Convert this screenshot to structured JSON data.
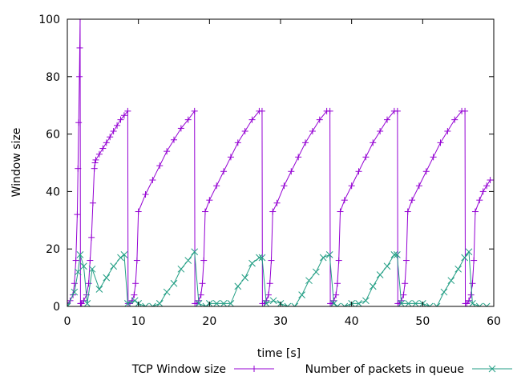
{
  "chart_data": {
    "type": "line",
    "title": "",
    "xlabel": "time [s]",
    "ylabel": "Window size",
    "xlim": [
      0,
      60
    ],
    "ylim": [
      0,
      100
    ],
    "xticks": [
      "0",
      "10",
      "20",
      "30",
      "40",
      "50",
      "60"
    ],
    "yticks": [
      "0",
      "20",
      "40",
      "60",
      "80",
      "100"
    ],
    "grid": false,
    "legend_position": "bottom",
    "series": [
      {
        "name": "TCP Window size",
        "color": "#9400d3",
        "marker": "plus",
        "x": [
          0,
          0.4,
          0.8,
          1.0,
          1.2,
          1.4,
          1.5,
          1.6,
          1.7,
          1.75,
          1.8,
          1.85,
          1.9,
          2.0,
          2.3,
          2.7,
          3.0,
          3.2,
          3.4,
          3.6,
          3.8,
          3.9,
          4.0,
          4.5,
          5.0,
          5.5,
          6.0,
          6.5,
          7.0,
          7.5,
          8.0,
          8.5,
          8.55,
          8.8,
          9.1,
          9.4,
          9.6,
          9.8,
          10.0,
          11,
          12,
          13,
          14,
          15,
          16,
          17,
          17.9,
          17.95,
          18.2,
          18.5,
          18.8,
          19.0,
          19.2,
          19.4,
          20,
          21,
          22,
          23,
          24,
          25,
          26,
          27,
          27.4,
          27.45,
          27.7,
          28.0,
          28.3,
          28.5,
          28.7,
          28.9,
          29.5,
          30.5,
          31.5,
          32.5,
          33.5,
          34.5,
          35.5,
          36.5,
          36.95,
          37.0,
          37.2,
          37.5,
          37.8,
          38.0,
          38.2,
          38.4,
          39,
          40,
          41,
          42,
          43,
          44,
          45,
          46,
          46.45,
          46.5,
          46.7,
          47.0,
          47.3,
          47.5,
          47.7,
          47.9,
          48.5,
          49.5,
          50.5,
          51.5,
          52.5,
          53.5,
          54.5,
          55.5,
          55.95,
          56.0,
          56.2,
          56.5,
          56.8,
          57.0,
          57.2,
          57.4,
          58,
          58.5,
          59,
          59.5,
          60
        ],
        "y": [
          1,
          2,
          4,
          8,
          16,
          32,
          48,
          64,
          80,
          90,
          100,
          1,
          1,
          1,
          2,
          4,
          8,
          16,
          24,
          36,
          48,
          50,
          51,
          53,
          55,
          57,
          59,
          61,
          63,
          65,
          66.5,
          68,
          1,
          1,
          2,
          4,
          8,
          16,
          33,
          39,
          44,
          49,
          54,
          58,
          62,
          65,
          68,
          1,
          1,
          2,
          4,
          8,
          16,
          33,
          37,
          42,
          47,
          52,
          57,
          61,
          65,
          68,
          68,
          1,
          1,
          2,
          4,
          8,
          16,
          33,
          36,
          42,
          47,
          52,
          57,
          61,
          65,
          68,
          68,
          1,
          1,
          2,
          4,
          8,
          16,
          33,
          37,
          42,
          47,
          52,
          57,
          61,
          65,
          68,
          68,
          1,
          1,
          2,
          4,
          8,
          16,
          33,
          37,
          42,
          47,
          52,
          57,
          61,
          65,
          68,
          68,
          1,
          1,
          2,
          4,
          8,
          16,
          33,
          37,
          40,
          42,
          44,
          44
        ]
      },
      {
        "name": "Number of packets in queue",
        "color": "#229e84",
        "marker": "x",
        "x": [
          0,
          1.0,
          1.5,
          1.8,
          2.3,
          2.8,
          3.5,
          4.5,
          5.5,
          6.5,
          7.5,
          8.0,
          8.5,
          9.5,
          10.0,
          11,
          12,
          13,
          14,
          15,
          16,
          17,
          17.9,
          18.5,
          19.5,
          20,
          21,
          22,
          23,
          24,
          25,
          26,
          27,
          27.4,
          28,
          29,
          30,
          31,
          32,
          33,
          34,
          35,
          36,
          36.9,
          37.5,
          38,
          39,
          40,
          41,
          42,
          43,
          44,
          45,
          46,
          46.4,
          47,
          48,
          49,
          50,
          51,
          52,
          53,
          54,
          55,
          55.9,
          56.5,
          57,
          58,
          59
        ],
        "y": [
          0,
          5,
          12,
          18,
          14,
          1,
          13,
          6,
          10,
          14,
          17,
          18,
          1,
          2,
          1,
          0,
          0,
          1,
          5,
          8,
          13,
          16,
          19,
          1,
          0,
          1,
          1,
          1,
          1,
          7,
          10,
          15,
          17,
          17,
          1,
          2,
          1,
          0,
          0,
          4,
          9,
          12,
          17,
          18,
          1,
          0,
          0,
          1,
          1,
          2,
          7,
          11,
          14,
          18,
          18,
          1,
          1,
          1,
          1,
          0,
          0,
          5,
          9,
          13,
          17,
          19,
          1,
          0,
          0
        ]
      }
    ]
  }
}
